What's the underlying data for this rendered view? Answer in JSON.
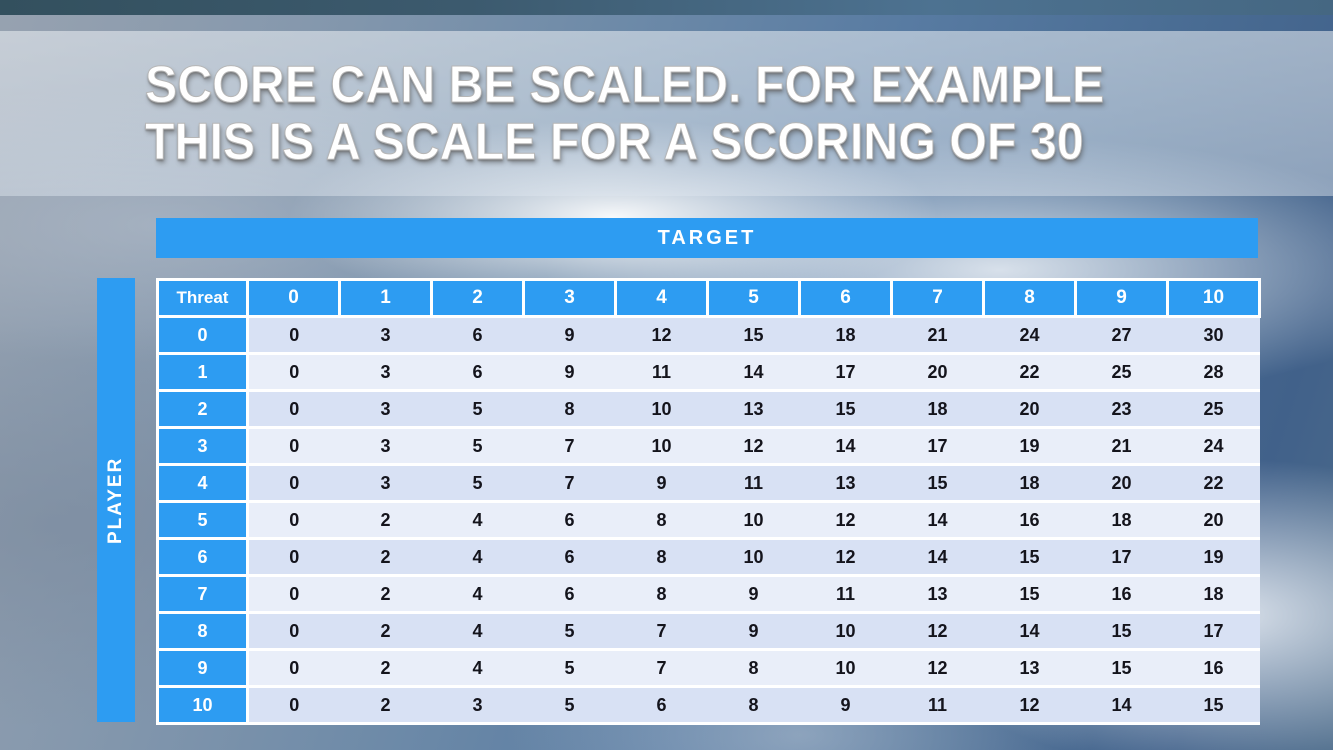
{
  "title": {
    "line1": "SCORE CAN BE SCALED. FOR EXAMPLE",
    "line2": "THIS IS A SCALE FOR A SCORING OF 30"
  },
  "matrix": {
    "target_label": "TARGET",
    "player_label": "PLAYER",
    "corner_label": "Threat",
    "column_headers": [
      "0",
      "1",
      "2",
      "3",
      "4",
      "5",
      "6",
      "7",
      "8",
      "9",
      "10"
    ],
    "rows": [
      {
        "header": "0",
        "values": [
          0,
          3,
          6,
          9,
          12,
          15,
          18,
          21,
          24,
          27,
          30
        ]
      },
      {
        "header": "1",
        "values": [
          0,
          3,
          6,
          9,
          11,
          14,
          17,
          20,
          22,
          25,
          28
        ]
      },
      {
        "header": "2",
        "values": [
          0,
          3,
          5,
          8,
          10,
          13,
          15,
          18,
          20,
          23,
          25
        ]
      },
      {
        "header": "3",
        "values": [
          0,
          3,
          5,
          7,
          10,
          12,
          14,
          17,
          19,
          21,
          24
        ]
      },
      {
        "header": "4",
        "values": [
          0,
          3,
          5,
          7,
          9,
          11,
          13,
          15,
          18,
          20,
          22
        ]
      },
      {
        "header": "5",
        "values": [
          0,
          2,
          4,
          6,
          8,
          10,
          12,
          14,
          16,
          18,
          20
        ]
      },
      {
        "header": "6",
        "values": [
          0,
          2,
          4,
          6,
          8,
          10,
          12,
          14,
          15,
          17,
          19
        ]
      },
      {
        "header": "7",
        "values": [
          0,
          2,
          4,
          6,
          8,
          9,
          11,
          13,
          15,
          16,
          18
        ]
      },
      {
        "header": "8",
        "values": [
          0,
          2,
          4,
          5,
          7,
          9,
          10,
          12,
          14,
          15,
          17
        ]
      },
      {
        "header": "9",
        "values": [
          0,
          2,
          4,
          5,
          7,
          8,
          10,
          12,
          13,
          15,
          16
        ]
      },
      {
        "header": "10",
        "values": [
          0,
          2,
          3,
          5,
          6,
          8,
          9,
          11,
          12,
          14,
          15
        ]
      }
    ]
  },
  "colors": {
    "accent_blue": "#2d9cf2",
    "row_stripe_dark": "#d8e1f4",
    "row_stripe_light": "#e9eef9",
    "header_text": "#ffffff",
    "cell_text": "#14141c"
  }
}
